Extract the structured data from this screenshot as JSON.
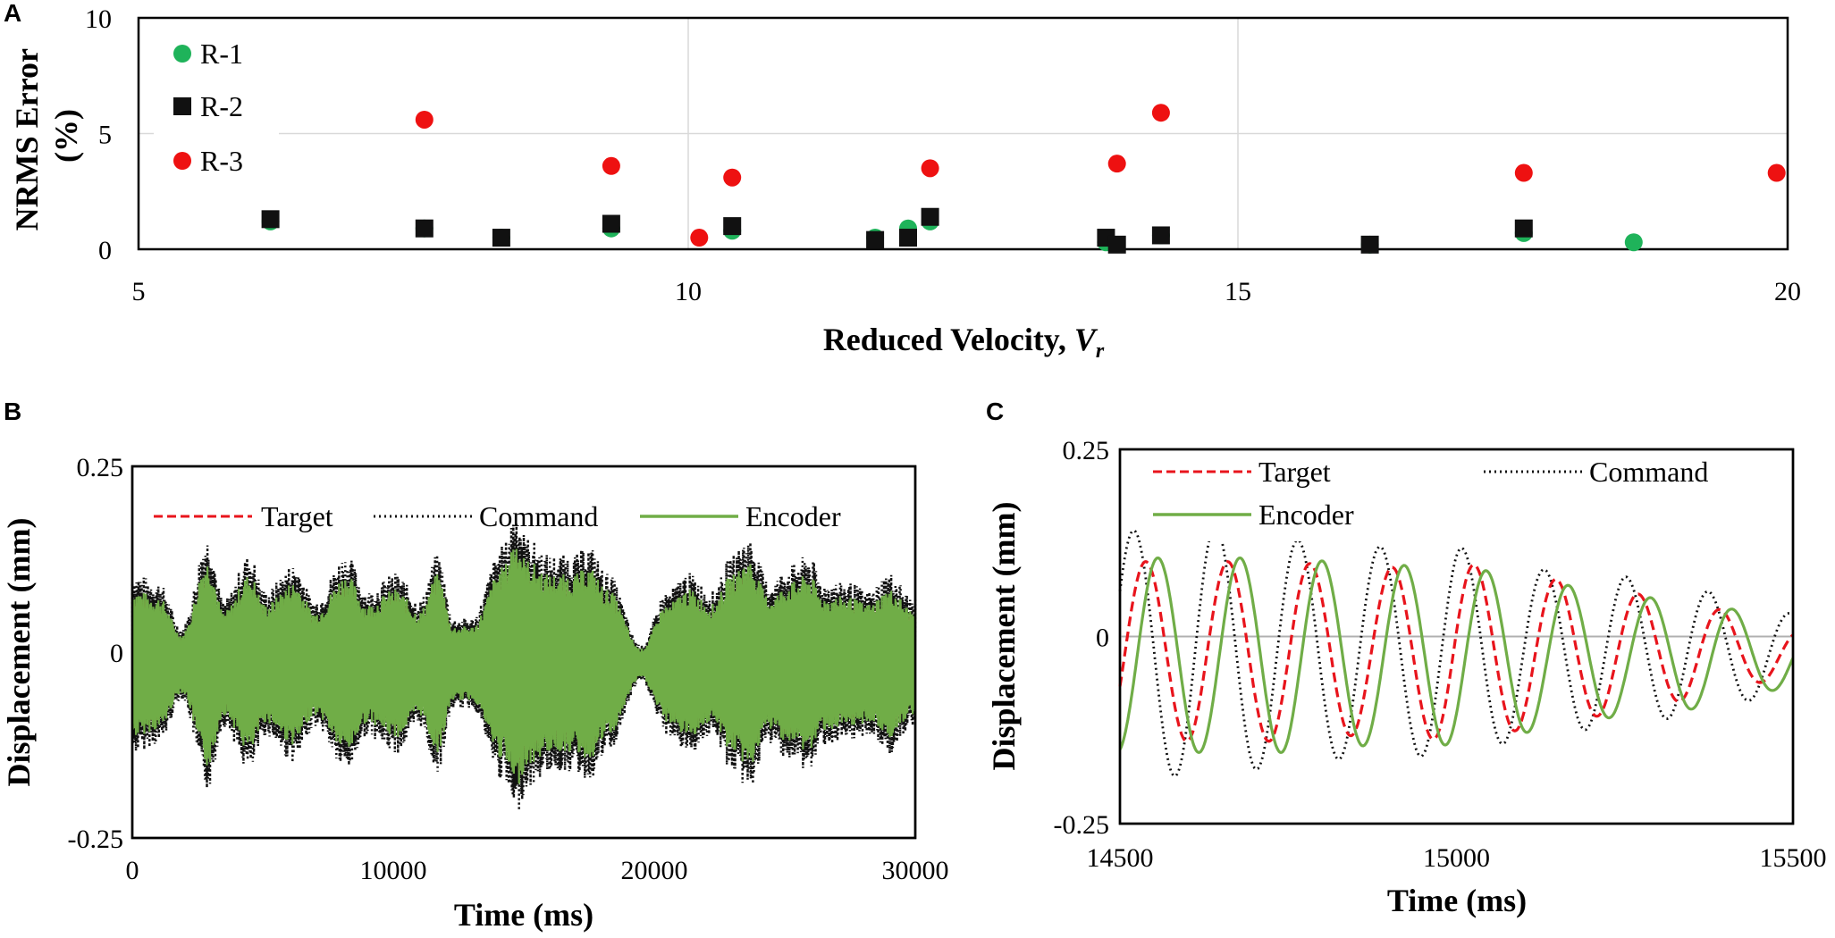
{
  "chart_data": [
    {
      "panel": "A",
      "type": "scatter",
      "xlabel": "Reduced Velocity, ",
      "xlabel_var": "V",
      "xlabel_sub": "r",
      "ylabel_line1": "NRMS  Error",
      "ylabel_line2": "(%)",
      "xlim": [
        5,
        20
      ],
      "ylim": [
        0,
        10
      ],
      "xticks": [
        5,
        10,
        15,
        20
      ],
      "yticks": [
        0,
        5,
        10
      ],
      "grid": true,
      "legend_position": "top-left",
      "series": [
        {
          "name": "R-1",
          "marker": "circle",
          "color": "#1fb35a",
          "points": [
            [
              6.2,
              1.2
            ],
            [
              7.6,
              0.9
            ],
            [
              8.3,
              0.5
            ],
            [
              9.3,
              0.9
            ],
            [
              10.4,
              0.8
            ],
            [
              11.7,
              0.5
            ],
            [
              12.0,
              0.9
            ],
            [
              12.2,
              1.2
            ],
            [
              13.8,
              0.3
            ],
            [
              14.3,
              0.6
            ],
            [
              16.2,
              0.2
            ],
            [
              17.6,
              0.7
            ],
            [
              18.6,
              0.3
            ]
          ]
        },
        {
          "name": "R-2",
          "marker": "square",
          "color": "#111111",
          "points": [
            [
              6.2,
              1.3
            ],
            [
              7.6,
              0.9
            ],
            [
              8.3,
              0.5
            ],
            [
              9.3,
              1.1
            ],
            [
              10.4,
              1.0
            ],
            [
              11.7,
              0.4
            ],
            [
              12.0,
              0.5
            ],
            [
              12.2,
              1.4
            ],
            [
              13.8,
              0.5
            ],
            [
              13.9,
              0.2
            ],
            [
              14.3,
              0.6
            ],
            [
              16.2,
              0.2
            ],
            [
              17.6,
              0.9
            ]
          ]
        },
        {
          "name": "R-3",
          "marker": "circle",
          "color": "#ee1111",
          "points": [
            [
              7.6,
              5.6
            ],
            [
              9.3,
              3.6
            ],
            [
              10.1,
              0.5
            ],
            [
              10.4,
              3.1
            ],
            [
              12.2,
              3.5
            ],
            [
              13.9,
              3.7
            ],
            [
              14.3,
              5.9
            ],
            [
              17.6,
              3.3
            ],
            [
              19.9,
              3.3
            ]
          ]
        }
      ]
    },
    {
      "panel": "B",
      "type": "line",
      "xlabel": "Time (ms)",
      "ylabel": "Displacement (mm)",
      "xlim": [
        0,
        30000
      ],
      "ylim": [
        -0.25,
        0.25
      ],
      "xticks": [
        "0",
        "10000",
        "20000",
        "30000"
      ],
      "yticks": [
        "-0.25",
        "0",
        "0.25"
      ],
      "legend_position": "top",
      "envelope": {
        "x": [
          0,
          1000,
          1900,
          2900,
          3500,
          4500,
          5100,
          6200,
          7000,
          8200,
          9000,
          10100,
          11000,
          11700,
          12300,
          13000,
          14200,
          14700,
          15100,
          16000,
          16900,
          17500,
          18200,
          19500,
          20500,
          21300,
          22200,
          23000,
          23600,
          24400,
          25300,
          25900,
          26500,
          27400,
          28200,
          29000,
          30000
        ],
        "amp": [
          0.1,
          0.09,
          0.04,
          0.14,
          0.07,
          0.12,
          0.08,
          0.11,
          0.07,
          0.12,
          0.08,
          0.1,
          0.07,
          0.12,
          0.05,
          0.05,
          0.13,
          0.17,
          0.14,
          0.12,
          0.12,
          0.13,
          0.1,
          0.02,
          0.08,
          0.1,
          0.08,
          0.12,
          0.14,
          0.09,
          0.11,
          0.12,
          0.09,
          0.09,
          0.08,
          0.1,
          0.07
        ]
      },
      "series": [
        {
          "name": "Target",
          "style": "dashed",
          "color": "#e8141c"
        },
        {
          "name": "Command",
          "style": "dotted",
          "color": "#111111"
        },
        {
          "name": "Encoder",
          "style": "solid",
          "color": "#70ad47"
        }
      ]
    },
    {
      "panel": "C",
      "type": "line",
      "xlabel": "Time (ms)",
      "ylabel": "Displacement (mm)",
      "xlim": [
        14500,
        15500
      ],
      "ylim": [
        -0.25,
        0.25
      ],
      "xticks": [
        "14500",
        "15000",
        "15500"
      ],
      "yticks": [
        "-0.25",
        "0",
        "0.25"
      ],
      "legend_position": "top",
      "wave": {
        "period_ms": 122,
        "target_amp": [
          0.12,
          0.12,
          0.12,
          0.11,
          0.12,
          0.1,
          0.08,
          0.06,
          0.03
        ],
        "target_phase": -0.1,
        "command_amp": [
          0.16,
          0.17,
          0.15,
          0.14,
          0.14,
          0.11,
          0.1,
          0.08,
          0.05
        ],
        "command_lead_ms": -18,
        "encoder_amp": [
          0.13,
          0.13,
          0.13,
          0.12,
          0.12,
          0.1,
          0.08,
          0.07,
          0.04
        ],
        "encoder_lag_ms": 18
      },
      "series": [
        {
          "name": "Target",
          "style": "dashed",
          "color": "#e8141c"
        },
        {
          "name": "Command",
          "style": "dotted",
          "color": "#111111"
        },
        {
          "name": "Encoder",
          "style": "solid",
          "color": "#70ad47"
        }
      ]
    }
  ]
}
